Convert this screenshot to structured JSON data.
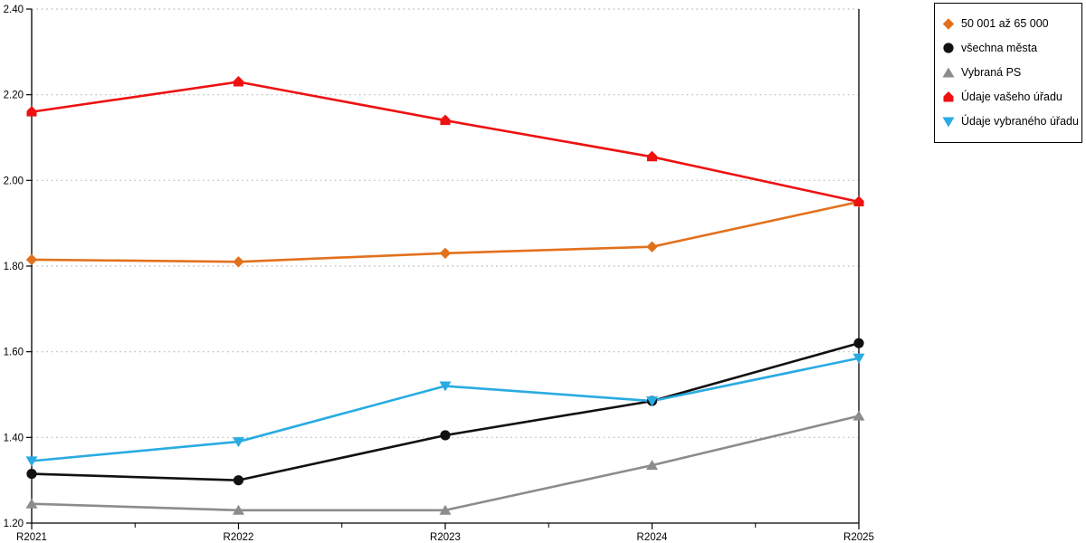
{
  "chart_data": {
    "type": "line",
    "title": "",
    "xlabel": "",
    "ylabel": "",
    "x_labels": [
      "R2021",
      "R2022",
      "R2023",
      "R2024",
      "R2025"
    ],
    "ylim": [
      1.2,
      2.4
    ],
    "y_tick_step": 0.2,
    "y_tick_labels": [
      "1.20",
      "1.40",
      "1.60",
      "1.80",
      "2.00",
      "2.20",
      "2.40"
    ],
    "grid": "horizontal-dotted",
    "grid_color": "#bfbfbf",
    "axis_color": "#000000",
    "legend_position": "outside-top-right",
    "series": [
      {
        "name": "50 001 až 65 000",
        "color": "#E2711D",
        "marker": "diamond",
        "values": [
          1.815,
          1.81,
          1.83,
          1.845,
          1.95
        ]
      },
      {
        "name": "všechna města",
        "color": "#111111",
        "marker": "circle",
        "values": [
          1.315,
          1.3,
          1.405,
          1.485,
          1.62
        ]
      },
      {
        "name": "Vybraná PS",
        "color": "#8C8C8C",
        "marker": "triangle-up",
        "values": [
          1.245,
          1.23,
          1.23,
          1.335,
          1.45
        ]
      },
      {
        "name": "Údaje vašeho úřadu",
        "color": "#EE1111",
        "marker": "pentagon",
        "values": [
          2.16,
          2.23,
          2.14,
          2.055,
          1.95
        ]
      },
      {
        "name": "Údaje vybraného úřadu",
        "color": "#29ABE2",
        "marker": "triangle-down",
        "values": [
          1.345,
          1.39,
          1.52,
          1.485,
          1.585
        ]
      }
    ]
  }
}
